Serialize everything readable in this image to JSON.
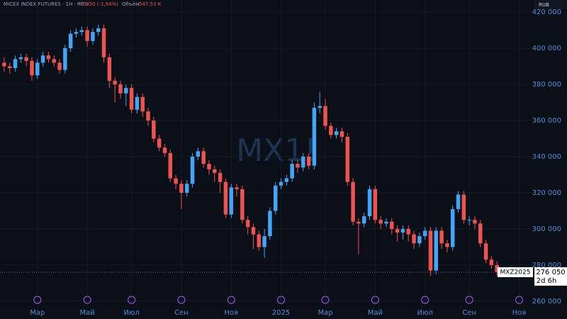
{
  "chart_data": {
    "type": "candlestick",
    "title": "MICEX INDEX FUTURES · 1Н · RUS",
    "change": "-5 450 (-1,94%)",
    "volume_label": "Объём",
    "volume": "547,53 K",
    "currency": "RUB",
    "watermark": "MX1!",
    "symbol": "MXZ2025",
    "last_price": {
      "value": 276050,
      "label": "276 050"
    },
    "countdown": "2d 6h",
    "up_color": "#42a5f5",
    "down_color": "#ef5350",
    "ylim": [
      258000,
      426700
    ],
    "yticks": [
      {
        "value": 260000,
        "label": "260 000"
      },
      {
        "value": 280000,
        "label": "280 000"
      },
      {
        "value": 300000,
        "label": "300 000"
      },
      {
        "value": 320000,
        "label": "320 000"
      },
      {
        "value": 340000,
        "label": "340 000"
      },
      {
        "value": 360000,
        "label": "360 000"
      },
      {
        "value": 380000,
        "label": "380 000"
      },
      {
        "value": 400000,
        "label": "400 000"
      },
      {
        "value": 420000,
        "label": "420 000"
      }
    ],
    "grid": true,
    "categories": [
      null,
      null,
      null,
      null,
      null,
      null,
      "Мар",
      null,
      null,
      null,
      null,
      null,
      null,
      null,
      null,
      "Май",
      null,
      null,
      null,
      null,
      null,
      null,
      null,
      "Июл",
      null,
      null,
      null,
      null,
      null,
      null,
      null,
      null,
      "Сен",
      null,
      null,
      null,
      null,
      null,
      null,
      null,
      null,
      "Ноя",
      null,
      null,
      null,
      null,
      null,
      null,
      null,
      null,
      "2025",
      null,
      null,
      null,
      null,
      null,
      null,
      null,
      "Мар",
      null,
      null,
      null,
      null,
      null,
      null,
      null,
      null,
      "Май",
      null,
      null,
      null,
      null,
      null,
      null,
      null,
      null,
      "Июл",
      null,
      null,
      null,
      null,
      null,
      null,
      null,
      "Сен",
      null,
      null,
      null,
      null,
      null,
      null,
      null,
      null,
      "Ноя",
      null,
      null
    ],
    "open": [
      392000,
      390000,
      389000,
      394000,
      395000,
      393000,
      385000,
      392000,
      396000,
      394000,
      392000,
      388000,
      400000,
      408000,
      409000,
      410000,
      404000,
      409000,
      411000,
      395000,
      382000,
      380000,
      375000,
      378000,
      366000,
      373000,
      365000,
      360000,
      350000,
      345000,
      342000,
      328000,
      325000,
      320000,
      325000,
      340000,
      343000,
      336000,
      333000,
      331000,
      326000,
      308000,
      323000,
      322000,
      305000,
      301000,
      297000,
      290000,
      296000,
      310000,
      324000,
      326000,
      328000,
      336000,
      334000,
      340000,
      335000,
      367000,
      368000,
      357000,
      352000,
      354000,
      351000,
      326000,
      304000,
      303000,
      307000,
      322000,
      305000,
      303000,
      304000,
      300000,
      298000,
      300000,
      297000,
      292000,
      296000,
      299000,
      277000,
      299000,
      292000,
      290000,
      311000,
      319000,
      305000,
      305000,
      303000,
      292000,
      283000,
      280000,
      null,
      null,
      null,
      null,
      null,
      null
    ],
    "high": [
      395000,
      392000,
      396000,
      397000,
      397000,
      395000,
      394000,
      398000,
      398000,
      396000,
      394000,
      402000,
      410000,
      411000,
      412000,
      412000,
      411000,
      413000,
      413000,
      397000,
      384000,
      382000,
      380000,
      380000,
      375000,
      375000,
      367000,
      362000,
      352000,
      347000,
      344000,
      330000,
      327000,
      327000,
      342000,
      345000,
      345000,
      338000,
      335000,
      333000,
      328000,
      325000,
      325000,
      324000,
      307000,
      303000,
      299000,
      300000,
      312000,
      326000,
      328000,
      330000,
      338000,
      338000,
      342000,
      342000,
      370000,
      376000,
      372000,
      359000,
      356000,
      356000,
      353000,
      328000,
      306000,
      309000,
      324000,
      324000,
      307000,
      306000,
      306000,
      302000,
      302000,
      302000,
      299000,
      298000,
      301000,
      301000,
      301000,
      301000,
      294000,
      313000,
      321000,
      321000,
      307000,
      307000,
      305000,
      294000,
      285000,
      282000,
      null,
      null,
      null,
      null,
      null,
      null
    ],
    "low": [
      387000,
      386000,
      387000,
      392000,
      390000,
      382000,
      383000,
      390000,
      392000,
      390000,
      386000,
      386000,
      398000,
      406000,
      407000,
      401000,
      402000,
      407000,
      392000,
      378000,
      370000,
      372000,
      368000,
      364000,
      364000,
      362000,
      357000,
      348000,
      343000,
      340000,
      326000,
      322000,
      311000,
      318000,
      323000,
      338000,
      334000,
      330000,
      326000,
      320000,
      306000,
      306000,
      318000,
      303000,
      297000,
      289000,
      288000,
      284000,
      294000,
      308000,
      322000,
      324000,
      326000,
      331000,
      332000,
      333000,
      333000,
      364000,
      355000,
      350000,
      350000,
      348000,
      324000,
      302000,
      286000,
      301000,
      305000,
      303000,
      300000,
      301000,
      297000,
      293000,
      294000,
      293000,
      289000,
      290000,
      294000,
      274000,
      275000,
      289000,
      287000,
      288000,
      309000,
      303000,
      302000,
      300000,
      290000,
      281000,
      278000,
      274000,
      null,
      null,
      null,
      null,
      null,
      null
    ],
    "close": [
      390000,
      389000,
      394000,
      395000,
      393000,
      385000,
      392000,
      396000,
      394000,
      392000,
      388000,
      400000,
      408000,
      409000,
      410000,
      404000,
      409000,
      411000,
      395000,
      382000,
      380000,
      375000,
      378000,
      366000,
      373000,
      365000,
      360000,
      350000,
      345000,
      342000,
      328000,
      325000,
      320000,
      325000,
      340000,
      343000,
      336000,
      333000,
      331000,
      326000,
      308000,
      323000,
      322000,
      305000,
      301000,
      297000,
      290000,
      296000,
      310000,
      324000,
      326000,
      328000,
      336000,
      334000,
      340000,
      335000,
      367000,
      368000,
      357000,
      352000,
      354000,
      351000,
      326000,
      304000,
      303000,
      307000,
      322000,
      305000,
      303000,
      304000,
      300000,
      298000,
      300000,
      297000,
      292000,
      296000,
      299000,
      277000,
      299000,
      292000,
      290000,
      311000,
      319000,
      305000,
      305000,
      303000,
      292000,
      283000,
      280000,
      276050,
      null,
      null,
      null,
      null,
      null,
      null
    ]
  }
}
